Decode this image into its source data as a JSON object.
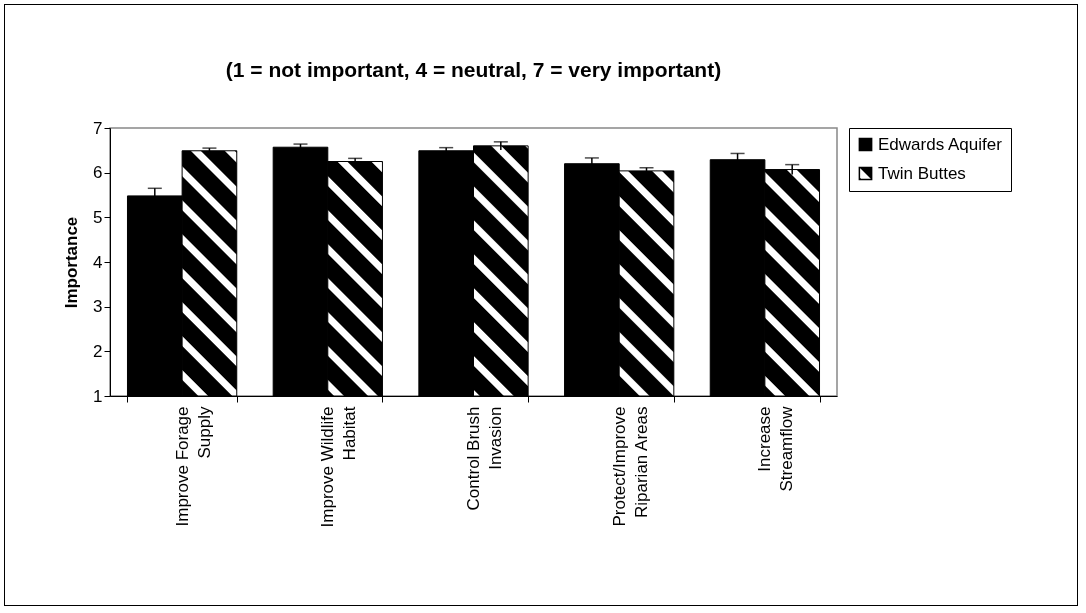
{
  "chart_data": {
    "type": "bar",
    "title": "(1 = not important, 4 = neutral, 7 = very important)",
    "ylabel": "Importance",
    "categories": [
      "Improve Forage Supply",
      "Improve Wildlife Habitat",
      "Control Brush Invasion",
      "Protect/Improve Riparian Areas",
      "Increase Streamflow"
    ],
    "series": [
      {
        "name": "Edwards Aquifer",
        "color": "#000000",
        "values": [
          5.48,
          6.57,
          6.49,
          6.2,
          6.29
        ],
        "errors": [
          0.17,
          0.07,
          0.07,
          0.13,
          0.14
        ]
      },
      {
        "name": "Twin Buttes",
        "color": "#000000",
        "values": [
          6.49,
          6.25,
          6.6,
          6.04,
          6.07
        ],
        "errors": [
          0.06,
          0.07,
          0.09,
          0.07,
          0.11
        ]
      }
    ],
    "ylim": [
      1,
      7
    ],
    "yticks": [
      1,
      2,
      3,
      4,
      5,
      6,
      7
    ],
    "legend": "right"
  }
}
